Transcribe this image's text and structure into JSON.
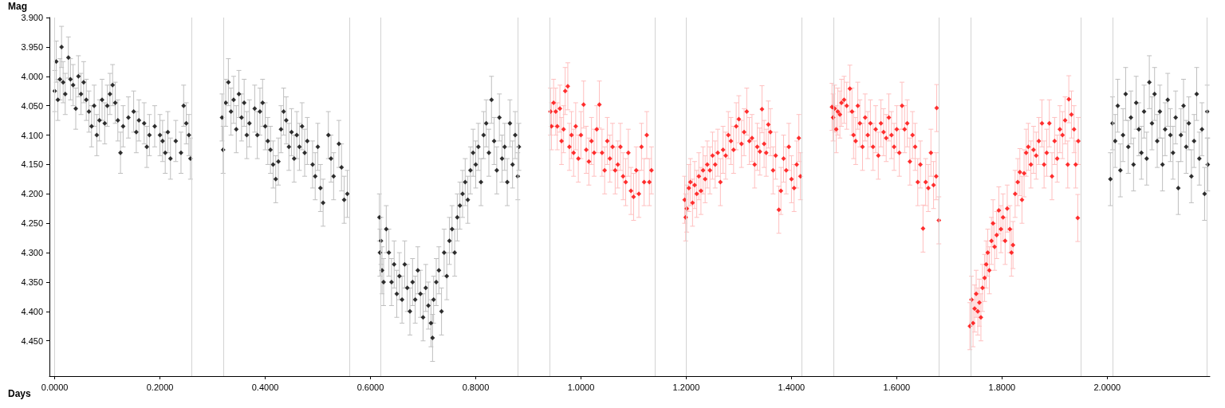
{
  "chart_data": {
    "type": "scatter",
    "xlabel": "Days",
    "ylabel": "Mag",
    "marker": "diamond",
    "grid": false,
    "xlim": [
      -0.01,
      2.195
    ],
    "ylim": [
      4.51,
      3.9
    ],
    "xticks": [
      {
        "value": 0,
        "label": "0.0000"
      },
      {
        "value": 0.2,
        "label": "0.2000"
      },
      {
        "value": 0.4,
        "label": "0.4000"
      },
      {
        "value": 0.6,
        "label": "0.6000"
      },
      {
        "value": 0.8,
        "label": "0.8000"
      },
      {
        "value": 1.0,
        "label": "1.0000"
      },
      {
        "value": 1.2,
        "label": "1.2000"
      },
      {
        "value": 1.4,
        "label": "1.4000"
      },
      {
        "value": 1.6,
        "label": "1.6000"
      },
      {
        "value": 1.8,
        "label": "1.8000"
      },
      {
        "value": 2.0,
        "label": "2.0000"
      }
    ],
    "yticks": [
      {
        "value": 3.9,
        "label": "3.900"
      },
      {
        "value": 3.95,
        "label": "3.950"
      },
      {
        "value": 4.0,
        "label": "4.000"
      },
      {
        "value": 4.05,
        "label": "4.050"
      },
      {
        "value": 4.1,
        "label": "4.100"
      },
      {
        "value": 4.15,
        "label": "4.150"
      },
      {
        "value": 4.2,
        "label": "4.200"
      },
      {
        "value": 4.25,
        "label": "4.250"
      },
      {
        "value": 4.3,
        "label": "4.300"
      },
      {
        "value": 4.35,
        "label": "4.350"
      },
      {
        "value": 4.4,
        "label": "4.400"
      },
      {
        "value": 4.45,
        "label": "4.450"
      }
    ],
    "ref_lines": [
      {
        "axis": "x",
        "value": 0,
        "color": "#d3d3d3"
      },
      {
        "axis": "x",
        "value": 0.258,
        "color": "#d3d3d3"
      },
      {
        "axis": "x",
        "value": 0.318,
        "color": "#d3d3d3"
      },
      {
        "axis": "x",
        "value": 0.556,
        "color": "#d3d3d3"
      },
      {
        "axis": "x",
        "value": 0.617,
        "color": "#d3d3d3"
      },
      {
        "axis": "x",
        "value": 0.882,
        "color": "#d3d3d3"
      },
      {
        "axis": "x",
        "value": 0.942,
        "color": "#d3d3d3"
      },
      {
        "axis": "x",
        "value": 1.136,
        "color": "#d3d3d3"
      },
      {
        "axis": "x",
        "value": 1.197,
        "color": "#d3d3d3"
      },
      {
        "axis": "x",
        "value": 1.417,
        "color": "#d3d3d3"
      },
      {
        "axis": "x",
        "value": 1.477,
        "color": "#d3d3d3"
      },
      {
        "axis": "x",
        "value": 1.68,
        "color": "#d3d3d3"
      },
      {
        "axis": "x",
        "value": 1.739,
        "color": "#d3d3d3"
      },
      {
        "axis": "x",
        "value": 1.945,
        "color": "#d3d3d3"
      },
      {
        "axis": "x",
        "value": 2.006,
        "color": "#d3d3d3"
      },
      {
        "axis": "x",
        "value": 2.191,
        "color": "#d3d3d3"
      }
    ],
    "series": [
      {
        "color": "#000000",
        "x": [
          0.0,
          0.003,
          0.006,
          0.01,
          0.013,
          0.016,
          0.02,
          0.026,
          0.03,
          0.035,
          0.04,
          0.045,
          0.05,
          0.055,
          0.06,
          0.065,
          0.07,
          0.075,
          0.08,
          0.085,
          0.09,
          0.095,
          0.1,
          0.105,
          0.11,
          0.115,
          0.12,
          0.125,
          0.13,
          0.14,
          0.15,
          0.155,
          0.16,
          0.17,
          0.175,
          0.18,
          0.19,
          0.2,
          0.205,
          0.21,
          0.215,
          0.22,
          0.23,
          0.24,
          0.245,
          0.25,
          0.255,
          0.258
        ],
        "values": [
          4.025,
          3.975,
          4.04,
          4.005,
          3.95,
          4.01,
          4.03,
          3.968,
          4.005,
          4.015,
          4.055,
          4.0,
          4.03,
          4.01,
          4.04,
          4.06,
          4.085,
          4.05,
          4.1,
          4.075,
          4.04,
          4.08,
          4.05,
          4.03,
          4.015,
          4.045,
          4.075,
          4.13,
          4.085,
          4.07,
          4.06,
          4.095,
          4.075,
          4.08,
          4.12,
          4.1,
          4.085,
          4.1,
          4.11,
          4.13,
          4.095,
          4.14,
          4.11,
          4.13,
          4.05,
          4.08,
          4.1,
          4.14
        ],
        "errors": [
          0.035,
          0.035,
          0.035,
          0.035,
          0.035,
          0.035,
          0.035,
          0.035,
          0.035,
          0.035,
          0.035,
          0.035,
          0.035,
          0.035,
          0.035,
          0.035,
          0.035,
          0.035,
          0.035,
          0.035,
          0.035,
          0.035,
          0.035,
          0.035,
          0.035,
          0.035,
          0.035,
          0.035,
          0.035,
          0.035,
          0.035,
          0.035,
          0.035,
          0.035,
          0.035,
          0.035,
          0.035,
          0.035,
          0.035,
          0.035,
          0.035,
          0.035,
          0.035,
          0.035,
          0.035,
          0.035,
          0.035,
          0.035
        ]
      },
      {
        "color": "#000000",
        "x": [
          0.318,
          0.32,
          0.325,
          0.33,
          0.335,
          0.34,
          0.345,
          0.35,
          0.355,
          0.36,
          0.365,
          0.37,
          0.38,
          0.385,
          0.39,
          0.395,
          0.4,
          0.405,
          0.41,
          0.415,
          0.42,
          0.425,
          0.43,
          0.435,
          0.44,
          0.445,
          0.45,
          0.455,
          0.46,
          0.465,
          0.47,
          0.475,
          0.48,
          0.49,
          0.495,
          0.5,
          0.505,
          0.51,
          0.52,
          0.525,
          0.53,
          0.54,
          0.545,
          0.55,
          0.556
        ],
        "values": [
          4.07,
          4.125,
          4.045,
          4.01,
          4.06,
          4.04,
          4.09,
          4.03,
          4.07,
          4.045,
          4.1,
          4.08,
          4.055,
          4.1,
          4.06,
          4.045,
          4.085,
          4.11,
          4.125,
          4.15,
          4.175,
          4.145,
          4.09,
          4.06,
          4.075,
          4.12,
          4.095,
          4.14,
          4.1,
          4.12,
          4.085,
          4.13,
          4.11,
          4.15,
          4.17,
          4.12,
          4.19,
          4.215,
          4.1,
          4.14,
          4.17,
          4.115,
          4.155,
          4.21,
          4.2
        ],
        "errors": [
          0.04,
          0.04,
          0.04,
          0.04,
          0.04,
          0.04,
          0.04,
          0.04,
          0.04,
          0.04,
          0.04,
          0.04,
          0.04,
          0.04,
          0.04,
          0.04,
          0.04,
          0.04,
          0.04,
          0.04,
          0.04,
          0.04,
          0.04,
          0.04,
          0.04,
          0.04,
          0.04,
          0.04,
          0.04,
          0.04,
          0.04,
          0.04,
          0.04,
          0.04,
          0.04,
          0.04,
          0.04,
          0.04,
          0.04,
          0.04,
          0.04,
          0.04,
          0.04,
          0.04,
          0.04
        ]
      },
      {
        "color": "#000000",
        "x": [
          0.617,
          0.618,
          0.62,
          0.622,
          0.625,
          0.63,
          0.635,
          0.64,
          0.645,
          0.65,
          0.655,
          0.66,
          0.665,
          0.67,
          0.675,
          0.68,
          0.685,
          0.69,
          0.695,
          0.7,
          0.705,
          0.71,
          0.715,
          0.718,
          0.72,
          0.725,
          0.73,
          0.735,
          0.74,
          0.745,
          0.75,
          0.755,
          0.76,
          0.765,
          0.77,
          0.775,
          0.78,
          0.785,
          0.79,
          0.795,
          0.8,
          0.805,
          0.81,
          0.815,
          0.82,
          0.825,
          0.83,
          0.835,
          0.84,
          0.845,
          0.85,
          0.855,
          0.86,
          0.865,
          0.87,
          0.875,
          0.88,
          0.882
        ],
        "values": [
          4.24,
          4.3,
          4.28,
          4.33,
          4.35,
          4.26,
          4.3,
          4.35,
          4.32,
          4.37,
          4.34,
          4.38,
          4.32,
          4.36,
          4.4,
          4.35,
          4.38,
          4.33,
          4.37,
          4.41,
          4.36,
          4.39,
          4.42,
          4.445,
          4.38,
          4.35,
          4.33,
          4.4,
          4.3,
          4.34,
          4.28,
          4.26,
          4.3,
          4.24,
          4.22,
          4.2,
          4.18,
          4.21,
          4.16,
          4.13,
          4.15,
          4.12,
          4.18,
          4.1,
          4.08,
          4.13,
          4.04,
          4.11,
          4.16,
          4.07,
          4.14,
          4.12,
          4.18,
          4.08,
          4.15,
          4.1,
          4.17,
          4.12
        ],
        "errors": [
          0.04,
          0.04,
          0.04,
          0.04,
          0.04,
          0.04,
          0.04,
          0.04,
          0.04,
          0.04,
          0.04,
          0.04,
          0.04,
          0.04,
          0.04,
          0.04,
          0.04,
          0.04,
          0.04,
          0.04,
          0.04,
          0.04,
          0.04,
          0.04,
          0.04,
          0.04,
          0.04,
          0.04,
          0.04,
          0.04,
          0.04,
          0.04,
          0.04,
          0.04,
          0.04,
          0.04,
          0.04,
          0.04,
          0.04,
          0.04,
          0.04,
          0.04,
          0.04,
          0.04,
          0.04,
          0.04,
          0.04,
          0.04,
          0.04,
          0.04,
          0.04,
          0.04,
          0.04,
          0.04,
          0.04,
          0.04,
          0.04,
          0.04
        ]
      },
      {
        "color": "#ff0000",
        "x": [
          0.942,
          0.944,
          0.948,
          0.952,
          0.955,
          0.96,
          0.963,
          0.967,
          0.97,
          0.975,
          0.978,
          0.982,
          0.986,
          0.99,
          0.995,
          1.0,
          1.005,
          1.01,
          1.015,
          1.02,
          1.025,
          1.03,
          1.035,
          1.04,
          1.045,
          1.05,
          1.055,
          1.06,
          1.065,
          1.07,
          1.075,
          1.08,
          1.085,
          1.09,
          1.095,
          1.1,
          1.105,
          1.11,
          1.115,
          1.12,
          1.125,
          1.13,
          1.134
        ],
        "values": [
          4.06,
          4.085,
          4.045,
          4.06,
          4.085,
          4.055,
          4.11,
          4.09,
          4.025,
          4.017,
          4.12,
          4.1,
          4.13,
          4.085,
          4.14,
          4.1,
          4.048,
          4.125,
          4.145,
          4.11,
          4.13,
          4.09,
          4.048,
          4.13,
          4.16,
          4.11,
          4.14,
          4.12,
          4.16,
          4.15,
          4.12,
          4.17,
          4.18,
          4.13,
          4.195,
          4.205,
          4.16,
          4.2,
          4.12,
          4.18,
          4.1,
          4.18,
          4.16
        ],
        "errors": [
          0.04,
          0.04,
          0.04,
          0.04,
          0.04,
          0.04,
          0.04,
          0.04,
          0.04,
          0.04,
          0.04,
          0.04,
          0.04,
          0.04,
          0.04,
          0.04,
          0.04,
          0.04,
          0.04,
          0.04,
          0.04,
          0.04,
          0.04,
          0.04,
          0.04,
          0.04,
          0.04,
          0.04,
          0.04,
          0.04,
          0.04,
          0.04,
          0.04,
          0.04,
          0.04,
          0.04,
          0.04,
          0.04,
          0.04,
          0.04,
          0.04,
          0.04,
          0.04
        ]
      },
      {
        "color": "#ff0000",
        "x": [
          1.197,
          1.199,
          1.201,
          1.205,
          1.208,
          1.212,
          1.216,
          1.22,
          1.224,
          1.228,
          1.232,
          1.236,
          1.24,
          1.245,
          1.25,
          1.255,
          1.26,
          1.265,
          1.27,
          1.275,
          1.28,
          1.285,
          1.29,
          1.295,
          1.3,
          1.305,
          1.31,
          1.315,
          1.32,
          1.325,
          1.33,
          1.335,
          1.34,
          1.344,
          1.348,
          1.352,
          1.356,
          1.36,
          1.365,
          1.37,
          1.376,
          1.38,
          1.385,
          1.39,
          1.395,
          1.4,
          1.405,
          1.41,
          1.414,
          1.417
        ],
        "values": [
          4.21,
          4.24,
          4.225,
          4.19,
          4.18,
          4.215,
          4.185,
          4.2,
          4.17,
          4.195,
          4.16,
          4.175,
          4.15,
          4.16,
          4.135,
          4.15,
          4.13,
          4.18,
          4.125,
          4.135,
          4.1,
          4.11,
          4.125,
          4.085,
          4.073,
          4.115,
          4.095,
          4.06,
          4.11,
          4.105,
          4.15,
          4.12,
          4.128,
          4.056,
          4.115,
          4.13,
          4.082,
          4.095,
          4.16,
          4.135,
          4.227,
          4.195,
          4.14,
          4.16,
          4.12,
          4.175,
          4.19,
          4.15,
          4.105,
          4.17
        ],
        "errors": [
          0.04,
          0.04,
          0.04,
          0.04,
          0.04,
          0.04,
          0.04,
          0.04,
          0.04,
          0.04,
          0.04,
          0.04,
          0.04,
          0.04,
          0.04,
          0.04,
          0.04,
          0.04,
          0.04,
          0.04,
          0.04,
          0.04,
          0.04,
          0.04,
          0.04,
          0.04,
          0.04,
          0.04,
          0.04,
          0.04,
          0.04,
          0.04,
          0.04,
          0.04,
          0.04,
          0.04,
          0.04,
          0.04,
          0.04,
          0.04,
          0.04,
          0.04,
          0.04,
          0.04,
          0.04,
          0.04,
          0.04,
          0.04,
          0.04,
          0.04
        ]
      },
      {
        "color": "#ff0000",
        "x": [
          1.477,
          1.479,
          1.482,
          1.485,
          1.488,
          1.492,
          1.495,
          1.5,
          1.505,
          1.511,
          1.515,
          1.518,
          1.522,
          1.526,
          1.53,
          1.535,
          1.54,
          1.545,
          1.55,
          1.555,
          1.56,
          1.565,
          1.57,
          1.575,
          1.58,
          1.585,
          1.59,
          1.595,
          1.6,
          1.605,
          1.61,
          1.615,
          1.62,
          1.625,
          1.63,
          1.635,
          1.64,
          1.645,
          1.65,
          1.655,
          1.66,
          1.665,
          1.67,
          1.675,
          1.676,
          1.68
        ],
        "values": [
          4.052,
          4.07,
          4.055,
          4.09,
          4.06,
          4.065,
          4.045,
          4.04,
          4.05,
          4.021,
          4.06,
          4.1,
          4.11,
          4.05,
          4.08,
          4.12,
          4.07,
          4.1,
          4.08,
          4.12,
          4.09,
          4.135,
          4.08,
          4.095,
          4.105,
          4.07,
          4.1,
          4.12,
          4.09,
          4.13,
          4.05,
          4.09,
          4.08,
          4.145,
          4.1,
          4.12,
          4.18,
          4.15,
          4.259,
          4.18,
          4.19,
          4.13,
          4.185,
          4.17,
          4.054,
          4.245
        ],
        "errors": [
          0.04,
          0.04,
          0.04,
          0.04,
          0.04,
          0.04,
          0.04,
          0.04,
          0.04,
          0.04,
          0.04,
          0.04,
          0.04,
          0.04,
          0.04,
          0.04,
          0.04,
          0.04,
          0.04,
          0.04,
          0.04,
          0.04,
          0.04,
          0.04,
          0.04,
          0.04,
          0.04,
          0.04,
          0.04,
          0.04,
          0.04,
          0.04,
          0.04,
          0.04,
          0.04,
          0.04,
          0.04,
          0.04,
          0.04,
          0.04,
          0.04,
          0.04,
          0.04,
          0.04,
          0.04,
          0.04
        ]
      },
      {
        "color": "#ff0000",
        "x": [
          1.739,
          1.742,
          1.745,
          1.748,
          1.751,
          1.754,
          1.757,
          1.76,
          1.763,
          1.767,
          1.77,
          1.773,
          1.776,
          1.78,
          1.783,
          1.786,
          1.79,
          1.794,
          1.798,
          1.802,
          1.806,
          1.81,
          1.815,
          1.818,
          1.821,
          1.825,
          1.83,
          1.834,
          1.838,
          1.842,
          1.846,
          1.85,
          1.855,
          1.86,
          1.865,
          1.87,
          1.876,
          1.88,
          1.885,
          1.89,
          1.895,
          1.9,
          1.905,
          1.91,
          1.915,
          1.92,
          1.925,
          1.927,
          1.932,
          1.937,
          1.94,
          1.944,
          1.945
        ],
        "values": [
          4.425,
          4.38,
          4.42,
          4.395,
          4.37,
          4.4,
          4.385,
          4.41,
          4.36,
          4.343,
          4.32,
          4.3,
          4.33,
          4.28,
          4.25,
          4.29,
          4.27,
          4.228,
          4.26,
          4.24,
          4.28,
          4.225,
          4.26,
          4.3,
          4.287,
          4.2,
          4.18,
          4.163,
          4.21,
          4.165,
          4.13,
          4.12,
          4.15,
          4.125,
          4.135,
          4.11,
          4.08,
          4.15,
          4.13,
          4.08,
          4.17,
          4.11,
          4.14,
          4.09,
          4.1,
          4.075,
          4.15,
          4.039,
          4.065,
          4.09,
          4.15,
          4.241,
          4.11
        ],
        "errors": [
          0.04,
          0.04,
          0.04,
          0.04,
          0.04,
          0.04,
          0.04,
          0.04,
          0.04,
          0.04,
          0.04,
          0.04,
          0.04,
          0.04,
          0.04,
          0.04,
          0.04,
          0.04,
          0.04,
          0.04,
          0.04,
          0.04,
          0.04,
          0.04,
          0.04,
          0.04,
          0.04,
          0.04,
          0.04,
          0.04,
          0.04,
          0.04,
          0.04,
          0.04,
          0.04,
          0.04,
          0.04,
          0.04,
          0.04,
          0.04,
          0.04,
          0.04,
          0.04,
          0.04,
          0.04,
          0.04,
          0.04,
          0.04,
          0.04,
          0.04,
          0.04,
          0.04,
          0.04
        ]
      },
      {
        "color": "#000000",
        "x": [
          2.006,
          2.01,
          2.015,
          2.02,
          2.025,
          2.03,
          2.035,
          2.04,
          2.045,
          2.05,
          2.055,
          2.06,
          2.065,
          2.07,
          2.075,
          2.08,
          2.085,
          2.09,
          2.095,
          2.1,
          2.105,
          2.11,
          2.115,
          2.12,
          2.125,
          2.13,
          2.135,
          2.14,
          2.145,
          2.15,
          2.155,
          2.16,
          2.165,
          2.17,
          2.175,
          2.18,
          2.185,
          2.19,
          2.191
        ],
        "values": [
          4.175,
          4.08,
          4.11,
          4.05,
          4.16,
          4.1,
          4.03,
          4.12,
          4.07,
          4.15,
          4.045,
          4.09,
          4.13,
          4.06,
          4.14,
          4.01,
          4.08,
          4.03,
          4.11,
          4.06,
          4.15,
          4.09,
          4.04,
          4.1,
          4.13,
          4.07,
          4.19,
          4.1,
          4.05,
          4.12,
          4.08,
          4.17,
          4.11,
          4.03,
          4.14,
          4.09,
          4.2,
          4.06,
          4.15
        ],
        "errors": [
          0.045,
          0.045,
          0.045,
          0.045,
          0.045,
          0.045,
          0.045,
          0.045,
          0.045,
          0.045,
          0.045,
          0.045,
          0.045,
          0.045,
          0.045,
          0.045,
          0.045,
          0.045,
          0.045,
          0.045,
          0.045,
          0.045,
          0.045,
          0.045,
          0.045,
          0.045,
          0.045,
          0.045,
          0.045,
          0.045,
          0.045,
          0.045,
          0.045,
          0.045,
          0.045,
          0.045,
          0.045,
          0.045,
          0.045
        ]
      }
    ]
  }
}
